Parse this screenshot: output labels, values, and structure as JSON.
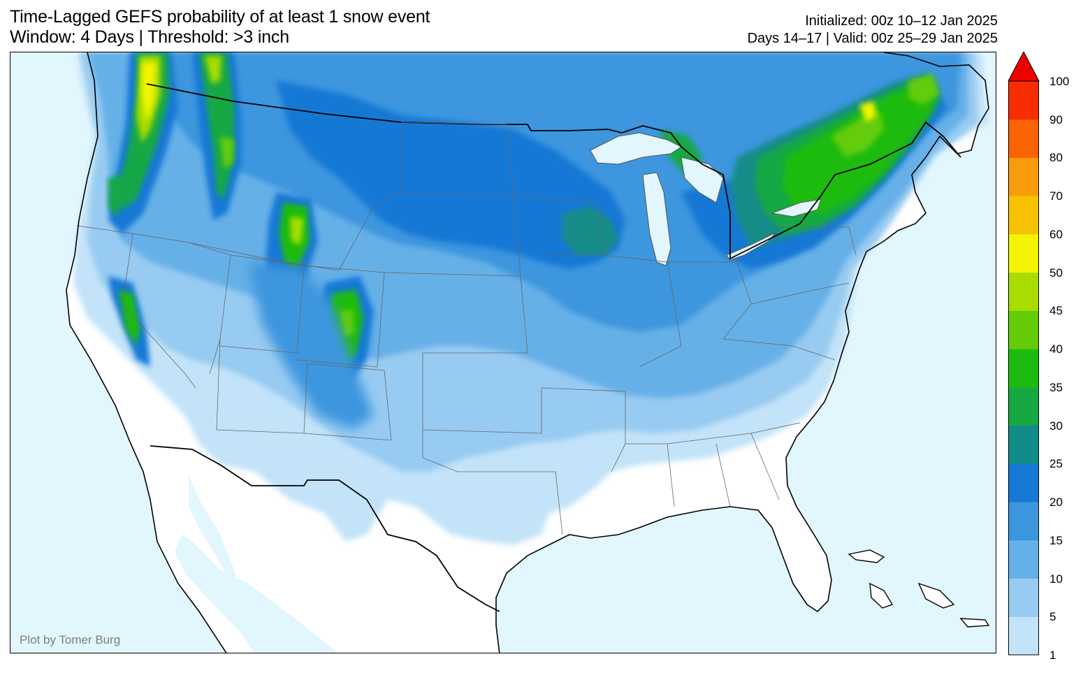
{
  "title": {
    "line1": "Time-Lagged GEFS probability of at least 1 snow event",
    "line2": "Window: 4 Days | Threshold: >3 inch"
  },
  "info": {
    "initialized": "Initialized: 00z 10–12 Jan 2025",
    "valid": "Days 14–17 | Valid: 00z 25–29 Jan 2025"
  },
  "credit": "Plot by Tomer Burg",
  "colorbar": {
    "levels": [
      "1",
      "5",
      "10",
      "15",
      "20",
      "25",
      "30",
      "35",
      "40",
      "45",
      "50",
      "60",
      "70",
      "80",
      "90",
      "100"
    ],
    "colors": [
      "#c3e3f8",
      "#98cbf1",
      "#66b0e8",
      "#3c96de",
      "#1878d5",
      "#128c88",
      "#17a844",
      "#1cbb10",
      "#63cc07",
      "#a9dd01",
      "#f4f400",
      "#f7c300",
      "#f99b0b",
      "#fb6300",
      "#f72d00",
      "#ee0000"
    ]
  },
  "map": {
    "ocean_color": "#e2f6fe",
    "land_color": "#ffffff",
    "regions": "CONUS, southern Canada, northern Mexico"
  }
}
